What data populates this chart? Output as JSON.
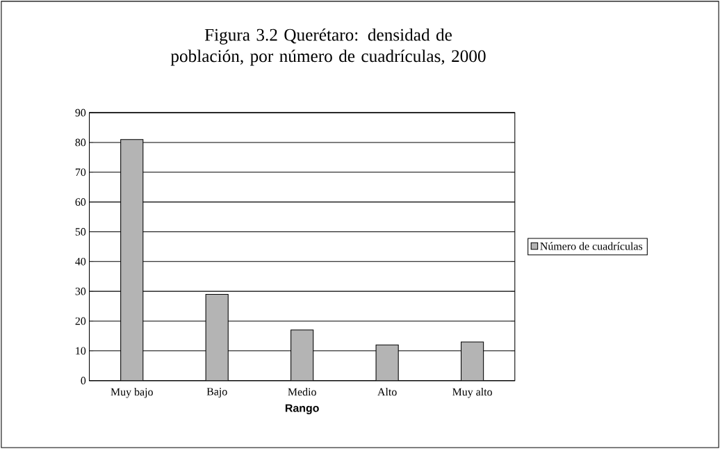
{
  "chart_data": {
    "type": "bar",
    "title": "Figura 3.2 Querétaro: densidad de población, por número de cuadrículas, 2000",
    "xlabel": "Rango",
    "categories": [
      "Muy bajo",
      "Bajo",
      "Medio",
      "Alto",
      "Muy alto"
    ],
    "series": [
      {
        "name": "Número de cuadrículas",
        "color": "#b4b4b4",
        "values": [
          81,
          29,
          17,
          12,
          13
        ]
      }
    ],
    "ylim": [
      0,
      90
    ],
    "yticks": [
      0,
      10,
      20,
      30,
      40,
      50,
      60,
      70,
      80,
      90
    ],
    "grid": "y",
    "legend": "right"
  }
}
